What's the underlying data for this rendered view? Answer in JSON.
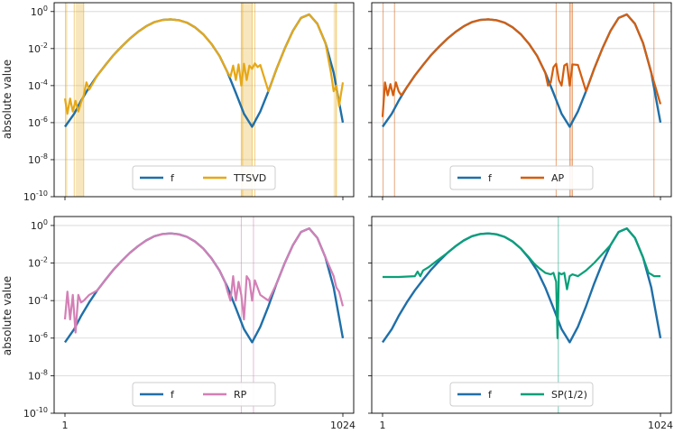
{
  "figure": {
    "ylabel": "absolute value"
  },
  "chart_data": [
    {
      "type": "line",
      "panel": "top-left",
      "scale": "log",
      "xlim": [
        1,
        1024
      ],
      "ylim": [
        1e-10,
        3
      ],
      "grid": "horizontal",
      "x_ticks": [],
      "y_ticks": [
        "10^0",
        "10^-2",
        "10^-4",
        "10^-6",
        "10^-8",
        "10^-10"
      ],
      "legend_position": "bottom-center",
      "series": [
        {
          "name": "f",
          "color": "#1f6fa8",
          "x": [
            1,
            35,
            60,
            90,
            120,
            150,
            180,
            210,
            240,
            270,
            300,
            330,
            360,
            390,
            420,
            450,
            480,
            510,
            540,
            570,
            600,
            630,
            660,
            690,
            720,
            750,
            780,
            810,
            840,
            870,
            900,
            930,
            960,
            990,
            1024
          ],
          "y": [
            6e-07,
            3e-06,
            1.5e-05,
            8e-05,
            0.00035,
            0.0013,
            0.0045,
            0.013,
            0.035,
            0.08,
            0.16,
            0.27,
            0.35,
            0.38,
            0.34,
            0.25,
            0.14,
            0.06,
            0.018,
            0.004,
            0.0005,
            4e-05,
            3e-06,
            6e-07,
            4e-06,
            5e-05,
            0.0008,
            0.01,
            0.09,
            0.45,
            0.7,
            0.22,
            0.02,
            0.0005,
            1e-06
          ]
        },
        {
          "name": "TTSVD",
          "color": "#e6a817",
          "x": [
            1,
            10,
            20,
            30,
            40,
            50,
            60,
            70,
            80,
            90,
            120,
            150,
            180,
            210,
            240,
            270,
            300,
            330,
            360,
            390,
            420,
            450,
            480,
            510,
            540,
            570,
            600,
            610,
            620,
            630,
            640,
            650,
            660,
            670,
            680,
            690,
            700,
            710,
            720,
            750,
            780,
            810,
            840,
            870,
            900,
            930,
            960,
            980,
            990,
            1000,
            1010,
            1024
          ],
          "y": [
            2e-05,
            3e-06,
            2e-05,
            4e-06,
            1.5e-05,
            4e-06,
            1.2e-05,
            3e-05,
            0.00015,
            6e-05,
            0.00035,
            0.0013,
            0.0045,
            0.013,
            0.035,
            0.08,
            0.16,
            0.27,
            0.35,
            0.38,
            0.34,
            0.25,
            0.14,
            0.06,
            0.018,
            0.004,
            0.0005,
            0.0003,
            0.0012,
            0.0002,
            0.0014,
            0.0001,
            0.0015,
            0.0002,
            0.0012,
            0.0008,
            0.0016,
            0.001,
            0.0013,
            5e-05,
            0.0008,
            0.01,
            0.09,
            0.45,
            0.7,
            0.22,
            0.02,
            0.0005,
            5e-05,
            0.0001,
            8e-06,
            0.00015
          ]
        }
      ],
      "bands": [
        [
          3,
          8
        ],
        [
          40,
          70
        ],
        [
          650,
          690
        ],
        [
          990,
          1000
        ]
      ],
      "vlines": [
        3,
        35,
        70,
        650,
        655,
        690,
        700,
        1000
      ]
    },
    {
      "type": "line",
      "panel": "top-right",
      "scale": "log",
      "xlim": [
        1,
        1024
      ],
      "ylim": [
        1e-10,
        3
      ],
      "grid": "horizontal",
      "x_ticks": [],
      "y_ticks": [],
      "legend_position": "bottom-center",
      "series": [
        {
          "name": "f",
          "color": "#1f6fa8",
          "x": [
            1,
            35,
            60,
            90,
            120,
            150,
            180,
            210,
            240,
            270,
            300,
            330,
            360,
            390,
            420,
            450,
            480,
            510,
            540,
            570,
            600,
            630,
            660,
            690,
            720,
            750,
            780,
            810,
            840,
            870,
            900,
            930,
            960,
            990,
            1024
          ],
          "y": [
            6e-07,
            3e-06,
            1.5e-05,
            8e-05,
            0.00035,
            0.0013,
            0.0045,
            0.013,
            0.035,
            0.08,
            0.16,
            0.27,
            0.35,
            0.38,
            0.34,
            0.25,
            0.14,
            0.06,
            0.018,
            0.004,
            0.0005,
            4e-05,
            3e-06,
            6e-07,
            4e-06,
            5e-05,
            0.0008,
            0.01,
            0.09,
            0.45,
            0.7,
            0.22,
            0.02,
            0.0005,
            1e-06
          ]
        },
        {
          "name": "AP",
          "color": "#d55e0e",
          "x": [
            1,
            10,
            20,
            30,
            40,
            50,
            60,
            70,
            90,
            120,
            150,
            180,
            210,
            240,
            270,
            300,
            330,
            360,
            390,
            420,
            450,
            480,
            510,
            540,
            570,
            600,
            610,
            620,
            630,
            640,
            650,
            660,
            670,
            680,
            690,
            700,
            720,
            750,
            780,
            810,
            840,
            870,
            900,
            930,
            960,
            990,
            1024
          ],
          "y": [
            2e-06,
            0.00015,
            3e-05,
            0.00012,
            3e-05,
            0.00015,
            5e-05,
            3e-05,
            8e-05,
            0.00035,
            0.0013,
            0.0045,
            0.013,
            0.035,
            0.08,
            0.16,
            0.27,
            0.35,
            0.38,
            0.34,
            0.25,
            0.14,
            0.06,
            0.018,
            0.004,
            0.0005,
            0.0001,
            0.00015,
            0.001,
            0.0015,
            0.0002,
            0.0001,
            0.0012,
            0.0015,
            0.0001,
            0.0014,
            0.0013,
            5e-05,
            0.0008,
            0.01,
            0.09,
            0.45,
            0.7,
            0.22,
            0.02,
            0.0005,
            1e-05
          ]
        }
      ],
      "bands": [],
      "vlines": [
        3,
        45,
        640,
        690,
        695,
        700,
        1000
      ]
    },
    {
      "type": "line",
      "panel": "bottom-left",
      "scale": "log",
      "xlim": [
        1,
        1024
      ],
      "ylim": [
        1e-10,
        3
      ],
      "grid": "horizontal",
      "x_ticks": [
        "1",
        "1024"
      ],
      "y_ticks": [
        "10^0",
        "10^-2",
        "10^-4",
        "10^-6",
        "10^-8",
        "10^-10"
      ],
      "legend_position": "bottom-center",
      "series": [
        {
          "name": "f",
          "color": "#1f6fa8",
          "x": [
            1,
            35,
            60,
            90,
            120,
            150,
            180,
            210,
            240,
            270,
            300,
            330,
            360,
            390,
            420,
            450,
            480,
            510,
            540,
            570,
            600,
            630,
            660,
            690,
            720,
            750,
            780,
            810,
            840,
            870,
            900,
            930,
            960,
            990,
            1024
          ],
          "y": [
            6e-07,
            3e-06,
            1.5e-05,
            8e-05,
            0.00035,
            0.0013,
            0.0045,
            0.013,
            0.035,
            0.08,
            0.16,
            0.27,
            0.35,
            0.38,
            0.34,
            0.25,
            0.14,
            0.06,
            0.018,
            0.004,
            0.0005,
            4e-05,
            3e-06,
            6e-07,
            4e-06,
            5e-05,
            0.0008,
            0.01,
            0.09,
            0.45,
            0.7,
            0.22,
            0.02,
            0.0005,
            1e-06
          ]
        },
        {
          "name": "RP",
          "color": "#d47fb6",
          "x": [
            1,
            10,
            20,
            30,
            40,
            50,
            60,
            70,
            90,
            120,
            150,
            180,
            210,
            240,
            270,
            300,
            330,
            360,
            390,
            420,
            450,
            480,
            510,
            540,
            570,
            590,
            600,
            610,
            620,
            630,
            640,
            650,
            660,
            670,
            680,
            690,
            700,
            720,
            750,
            780,
            810,
            840,
            870,
            900,
            930,
            960,
            990,
            1000,
            1010,
            1024
          ],
          "y": [
            1e-05,
            0.0003,
            1e-05,
            0.0002,
            2e-06,
            0.0002,
            8e-05,
            0.0001,
            0.0002,
            0.00035,
            0.0013,
            0.0045,
            0.013,
            0.035,
            0.08,
            0.16,
            0.27,
            0.35,
            0.38,
            0.34,
            0.25,
            0.14,
            0.06,
            0.018,
            0.004,
            0.001,
            0.0003,
            0.0001,
            0.002,
            0.0001,
            0.001,
            0.0002,
            1e-05,
            0.002,
            0.0012,
            0.0001,
            0.0012,
            0.0002,
            0.0001,
            0.0008,
            0.01,
            0.09,
            0.45,
            0.7,
            0.22,
            0.02,
            0.002,
            0.0005,
            0.0003,
            5e-05
          ]
        }
      ],
      "bands": [],
      "vlines": [
        650,
        695
      ]
    },
    {
      "type": "line",
      "panel": "bottom-right",
      "scale": "log",
      "xlim": [
        1,
        1024
      ],
      "ylim": [
        1e-10,
        3
      ],
      "grid": "horizontal",
      "x_ticks": [
        "1",
        "1024"
      ],
      "y_ticks": [],
      "legend_position": "bottom-center",
      "series": [
        {
          "name": "f",
          "color": "#1f6fa8",
          "x": [
            1,
            35,
            60,
            90,
            120,
            150,
            180,
            210,
            240,
            270,
            300,
            330,
            360,
            390,
            420,
            450,
            480,
            510,
            540,
            570,
            600,
            630,
            660,
            690,
            720,
            750,
            780,
            810,
            840,
            870,
            900,
            930,
            960,
            990,
            1024
          ],
          "y": [
            6e-07,
            3e-06,
            1.5e-05,
            8e-05,
            0.00035,
            0.0013,
            0.0045,
            0.013,
            0.035,
            0.08,
            0.16,
            0.27,
            0.35,
            0.38,
            0.34,
            0.25,
            0.14,
            0.06,
            0.018,
            0.004,
            0.0005,
            4e-05,
            3e-06,
            6e-07,
            4e-06,
            5e-05,
            0.0008,
            0.01,
            0.09,
            0.45,
            0.7,
            0.22,
            0.02,
            0.0005,
            1e-06
          ]
        },
        {
          "name": "SP(1/2)",
          "color": "#0aa078",
          "x": [
            1,
            60,
            120,
            130,
            140,
            150,
            170,
            200,
            240,
            270,
            300,
            330,
            360,
            390,
            420,
            450,
            480,
            510,
            540,
            560,
            580,
            600,
            620,
            630,
            640,
            645,
            650,
            660,
            670,
            680,
            690,
            700,
            720,
            750,
            780,
            810,
            840,
            870,
            900,
            930,
            960,
            980,
            990,
            1000,
            1024
          ],
          "y": [
            0.0018,
            0.0018,
            0.002,
            0.0035,
            0.002,
            0.004,
            0.006,
            0.013,
            0.035,
            0.08,
            0.16,
            0.27,
            0.35,
            0.38,
            0.34,
            0.25,
            0.14,
            0.06,
            0.02,
            0.009,
            0.005,
            0.003,
            0.0025,
            0.003,
            0.001,
            1e-06,
            0.003,
            0.0025,
            0.003,
            0.0004,
            0.002,
            0.0025,
            0.002,
            0.004,
            0.01,
            0.03,
            0.09,
            0.45,
            0.7,
            0.22,
            0.02,
            0.003,
            0.0025,
            0.002,
            0.002
          ]
        }
      ],
      "bands": [],
      "vlines": [
        648
      ]
    }
  ]
}
